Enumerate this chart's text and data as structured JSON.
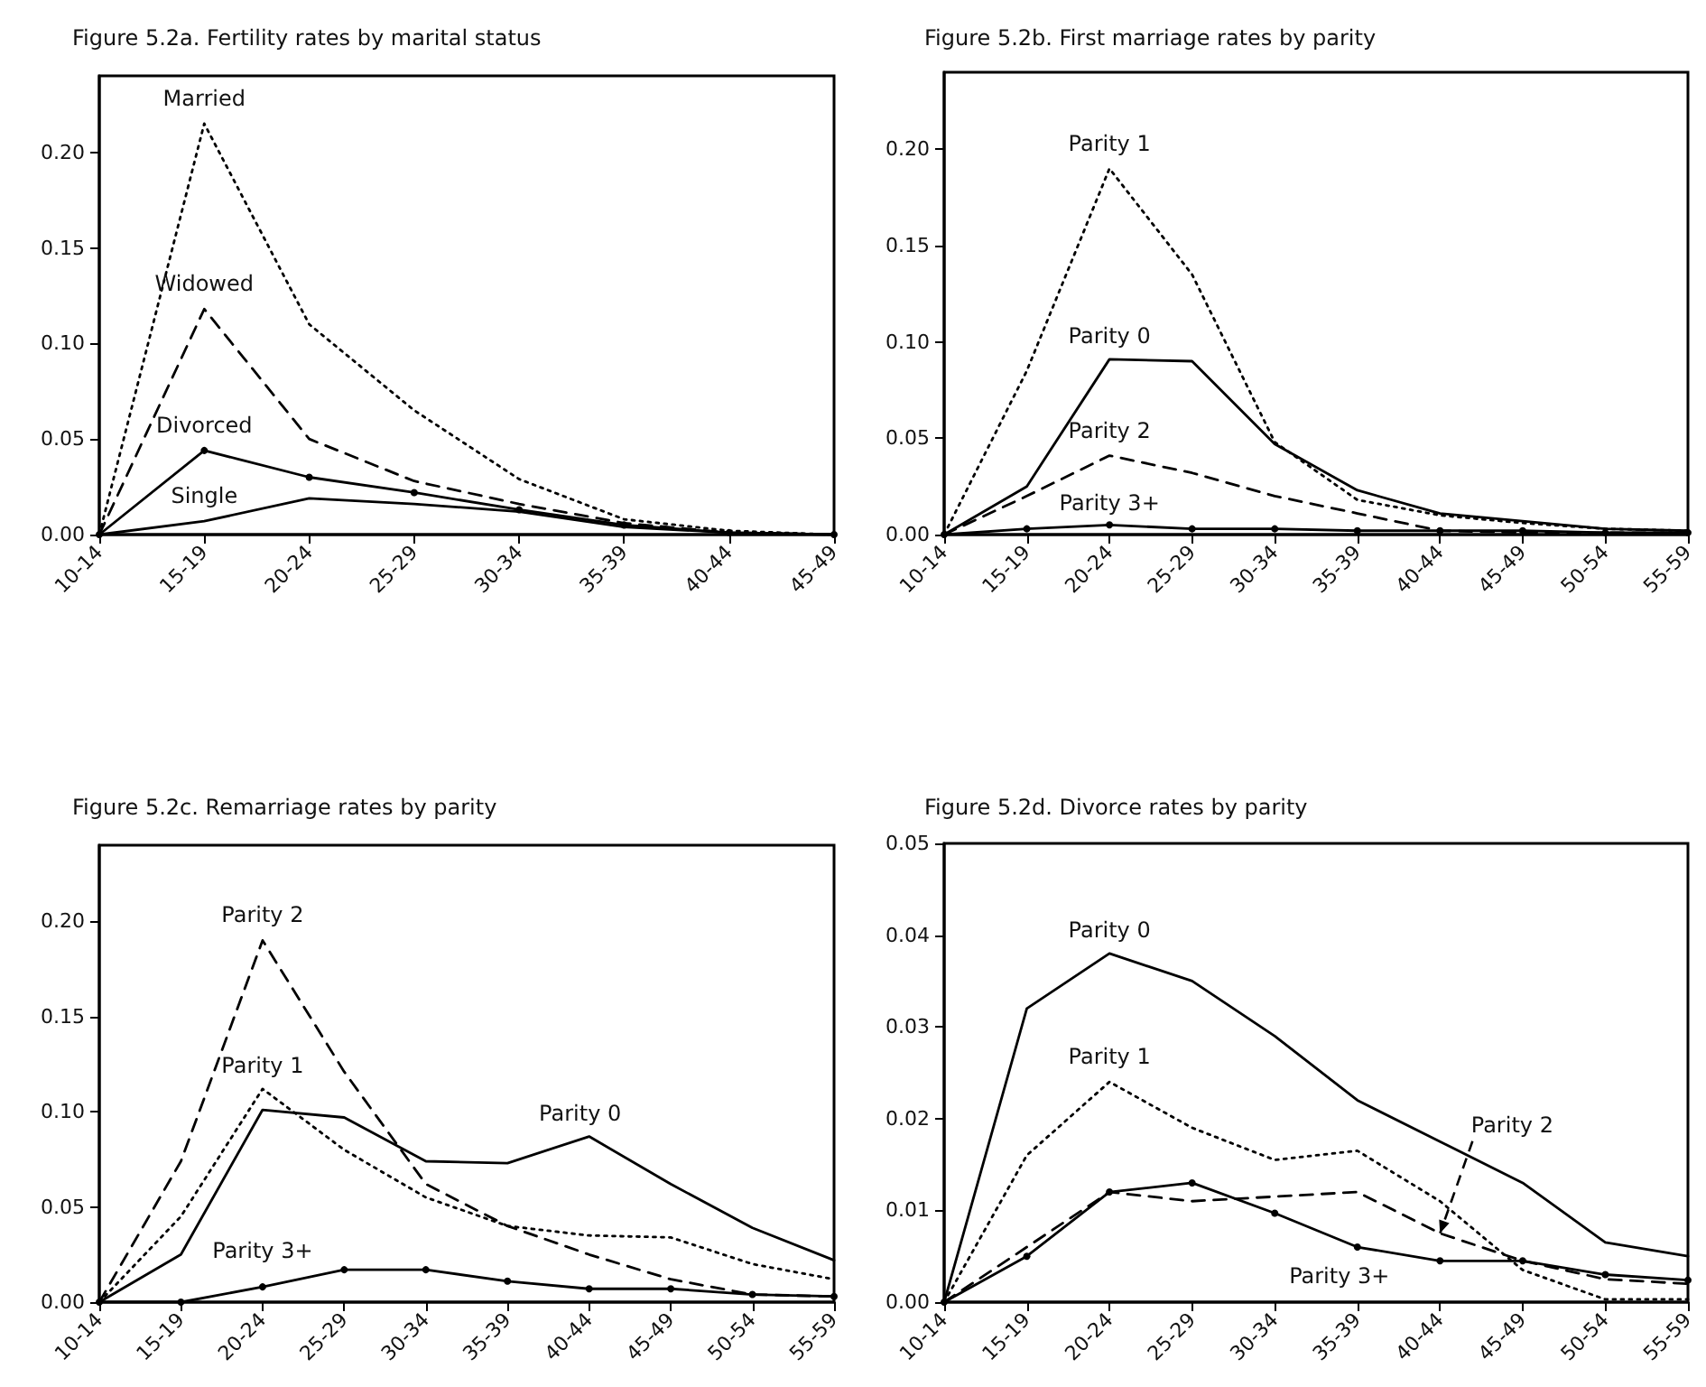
{
  "chart_data": [
    {
      "type": "line",
      "title": "Figure 5.2a. Fertility rates by marital status",
      "categories": [
        "10-14",
        "15-19",
        "20-24",
        "25-29",
        "30-34",
        "35-39",
        "40-44",
        "45-49"
      ],
      "ylim": [
        0,
        0.24
      ],
      "yticks": [
        {
          "value": 0,
          "label": "0.00"
        },
        {
          "value": 0.05,
          "label": "0.05"
        },
        {
          "value": 0.1,
          "label": "0.10"
        },
        {
          "value": 0.15,
          "label": "0.15"
        },
        {
          "value": 0.2,
          "label": "0.20"
        }
      ],
      "series": [
        {
          "color": "#000000",
          "line_style": "dotted",
          "marker": "none",
          "values": [
            0,
            0.215,
            0.11,
            0.065,
            0.029,
            0.008,
            0.002,
            0
          ]
        },
        {
          "color": "#000000",
          "line_style": "dashed",
          "marker": "none",
          "values": [
            0,
            0.118,
            0.05,
            0.028,
            0.016,
            0.006,
            0.001,
            0
          ]
        },
        {
          "color": "#000000",
          "line_style": "solid",
          "marker": "circle",
          "values": [
            0,
            0.044,
            0.03,
            0.022,
            0.013,
            0.005,
            0.001,
            0
          ]
        },
        {
          "color": "#000000",
          "line_style": "solid",
          "marker": "none",
          "values": [
            0,
            0.007,
            0.019,
            0.016,
            0.012,
            0.004,
            0.001,
            0
          ]
        }
      ],
      "annotations": [
        {
          "text": "Married",
          "x": "15-19",
          "y": 0.215
        },
        {
          "text": "Widowed",
          "x": "15-19",
          "y": 0.118
        },
        {
          "text": "Divorced",
          "x": "15-19",
          "y": 0.044
        },
        {
          "text": "Single",
          "x": "15-19",
          "y": 0.007
        }
      ]
    },
    {
      "type": "line",
      "title": "Figure 5.2b. First marriage rates by parity",
      "categories": [
        "10-14",
        "15-19",
        "20-24",
        "25-29",
        "30-34",
        "35-39",
        "40-44",
        "45-49",
        "50-54",
        "55-59"
      ],
      "ylim": [
        0,
        0.24
      ],
      "yticks": [
        {
          "value": 0,
          "label": "0.00"
        },
        {
          "value": 0.05,
          "label": "0.05"
        },
        {
          "value": 0.1,
          "label": "0.10"
        },
        {
          "value": 0.15,
          "label": "0.15"
        },
        {
          "value": 0.2,
          "label": "0.20"
        }
      ],
      "series": [
        {
          "color": "#000000",
          "line_style": "dotted",
          "marker": "none",
          "values": [
            0,
            0.085,
            0.19,
            0.135,
            0.048,
            0.018,
            0.01,
            0.006,
            0.003,
            0.002
          ]
        },
        {
          "color": "#000000",
          "line_style": "solid",
          "marker": "none",
          "values": [
            0,
            0.025,
            0.091,
            0.09,
            0.047,
            0.023,
            0.011,
            0.007,
            0.003,
            0.002
          ]
        },
        {
          "color": "#000000",
          "line_style": "dashed",
          "marker": "none",
          "values": [
            0,
            0.02,
            0.041,
            0.032,
            0.02,
            0.011,
            0.002,
            0.001,
            0.001,
            0.001
          ]
        },
        {
          "color": "#000000",
          "line_style": "solid",
          "marker": "circle",
          "values": [
            0,
            0.003,
            0.005,
            0.003,
            0.003,
            0.002,
            0.002,
            0.002,
            0.001,
            0.001
          ]
        }
      ],
      "annotations": [
        {
          "text": "Parity 1",
          "x": "20-24",
          "y": 0.19
        },
        {
          "text": "Parity 0",
          "x": "20-24",
          "y": 0.091
        },
        {
          "text": "Parity 2",
          "x": "20-24",
          "y": 0.041
        },
        {
          "text": "Parity 3+",
          "x": "20-24",
          "y": 0.005
        }
      ]
    },
    {
      "type": "line",
      "title": "Figure 5.2c. Remarriage rates by parity",
      "categories": [
        "10-14",
        "15-19",
        "20-24",
        "25-29",
        "30-34",
        "35-39",
        "40-44",
        "45-49",
        "50-54",
        "55-59"
      ],
      "ylim": [
        0,
        0.24
      ],
      "yticks": [
        {
          "value": 0,
          "label": "0.00"
        },
        {
          "value": 0.05,
          "label": "0.05"
        },
        {
          "value": 0.1,
          "label": "0.10"
        },
        {
          "value": 0.15,
          "label": "0.15"
        },
        {
          "value": 0.2,
          "label": "0.20"
        }
      ],
      "series": [
        {
          "color": "#000000",
          "line_style": "dashed",
          "marker": "none",
          "values": [
            0,
            0.074,
            0.19,
            0.121,
            0.062,
            0.04,
            0.025,
            0.012,
            0.004,
            0.003
          ]
        },
        {
          "color": "#000000",
          "line_style": "dotted",
          "marker": "none",
          "values": [
            0,
            0.045,
            0.112,
            0.08,
            0.055,
            0.04,
            0.035,
            0.034,
            0.02,
            0.012
          ]
        },
        {
          "color": "#000000",
          "line_style": "solid",
          "marker": "none",
          "values": [
            0,
            0.025,
            0.101,
            0.097,
            0.074,
            0.073,
            0.087,
            0.062,
            0.039,
            0.022
          ]
        },
        {
          "color": "#000000",
          "line_style": "solid",
          "marker": "circle",
          "values": [
            0,
            0,
            0.008,
            0.017,
            0.017,
            0.011,
            0.007,
            0.007,
            0.004,
            0.003
          ]
        }
      ],
      "annotations": [
        {
          "text": "Parity 2",
          "x": "20-24",
          "y": 0.19
        },
        {
          "text": "Parity 1",
          "x": "20-24",
          "y": 0.112
        },
        {
          "text": "Parity 0",
          "x": "40-44",
          "y": 0.087
        },
        {
          "text": "Parity 3+",
          "x": "20-24",
          "y": 0.008
        }
      ]
    },
    {
      "type": "line",
      "title": "Figure 5.2d. Divorce rates by parity",
      "categories": [
        "10-14",
        "15-19",
        "20-24",
        "25-29",
        "30-34",
        "35-39",
        "40-44",
        "45-49",
        "50-54",
        "55-59"
      ],
      "ylim": [
        0,
        0.05
      ],
      "yticks": [
        {
          "value": 0,
          "label": "0.00"
        },
        {
          "value": 0.01,
          "label": "0.01"
        },
        {
          "value": 0.02,
          "label": "0.02"
        },
        {
          "value": 0.03,
          "label": "0.03"
        },
        {
          "value": 0.04,
          "label": "0.04"
        },
        {
          "value": 0.05,
          "label": "0.05"
        }
      ],
      "series": [
        {
          "color": "#000000",
          "line_style": "solid",
          "marker": "none",
          "values": [
            0,
            0.032,
            0.038,
            0.035,
            0.029,
            0.022,
            0.0175,
            0.013,
            0.0065,
            0.005
          ]
        },
        {
          "color": "#000000",
          "line_style": "dotted",
          "marker": "none",
          "values": [
            0,
            0.016,
            0.024,
            0.019,
            0.0155,
            0.0165,
            0.011,
            0.0035,
            0.0003,
            0.0003
          ]
        },
        {
          "color": "#000000",
          "line_style": "dashed",
          "marker": "none",
          "values": [
            0,
            0.006,
            0.012,
            0.011,
            0.0115,
            0.012,
            0.0075,
            0.0045,
            0.0025,
            0.002
          ]
        },
        {
          "color": "#000000",
          "line_style": "solid",
          "marker": "circle",
          "values": [
            0,
            0.005,
            0.012,
            0.013,
            0.0097,
            0.006,
            0.0045,
            0.0045,
            0.003,
            0.0024
          ]
        }
      ],
      "annotations": [
        {
          "text": "Parity 0",
          "x": "20-24",
          "y": 0.038
        },
        {
          "text": "Parity 1",
          "x": "20-24",
          "y": 0.024
        },
        {
          "text": "Parity 2",
          "x": "40-44",
          "y": 0.0075
        },
        {
          "text": "Parity 3+",
          "x": "35-39",
          "y": 0.006
        }
      ]
    }
  ]
}
